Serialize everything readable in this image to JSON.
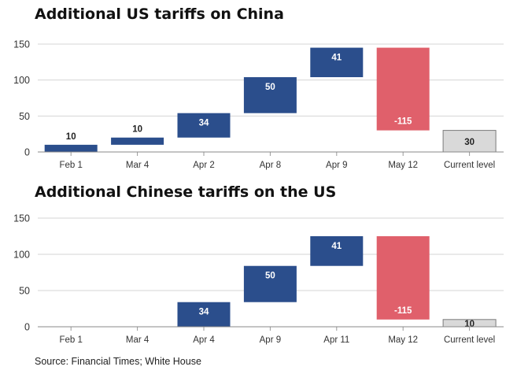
{
  "chart_data": [
    {
      "type": "waterfall",
      "title": "Additional US tariffs on China",
      "categories": [
        "Feb 1",
        "Mar 4",
        "Apr 2",
        "Apr 8",
        "Apr 9",
        "May 12",
        "Current level"
      ],
      "values": [
        10,
        10,
        34,
        50,
        41,
        -115,
        30
      ],
      "value_labels": [
        "10",
        "10",
        "34",
        "50",
        "41",
        "-115",
        "30"
      ],
      "bar_kinds": [
        "increase",
        "increase",
        "increase",
        "increase",
        "increase",
        "decrease",
        "total"
      ],
      "ylim": [
        0,
        150
      ],
      "yticks": [
        0,
        50,
        100,
        150
      ],
      "grid": true
    },
    {
      "type": "waterfall",
      "title": "Additional Chinese tariffs on the US",
      "categories": [
        "Feb 1",
        "Mar 4",
        "Apr 4",
        "Apr 9",
        "Apr 11",
        "May 12",
        "Current level"
      ],
      "values": [
        0,
        0,
        34,
        50,
        41,
        -115,
        10
      ],
      "value_labels": [
        "",
        "",
        "34",
        "50",
        "41",
        "-115",
        "10"
      ],
      "bar_kinds": [
        "increase",
        "increase",
        "increase",
        "increase",
        "increase",
        "decrease",
        "total"
      ],
      "ylim": [
        0,
        150
      ],
      "yticks": [
        0,
        50,
        100,
        150
      ],
      "grid": true
    }
  ],
  "colors": {
    "increase": "#2b4e8c",
    "decrease": "#e0606b",
    "total": "#d9d9d9",
    "total_stroke": "#7a7a7a",
    "grid": "#d4d4d4",
    "axis_text": "#333333"
  },
  "source": "Source: Financial Times; White House"
}
